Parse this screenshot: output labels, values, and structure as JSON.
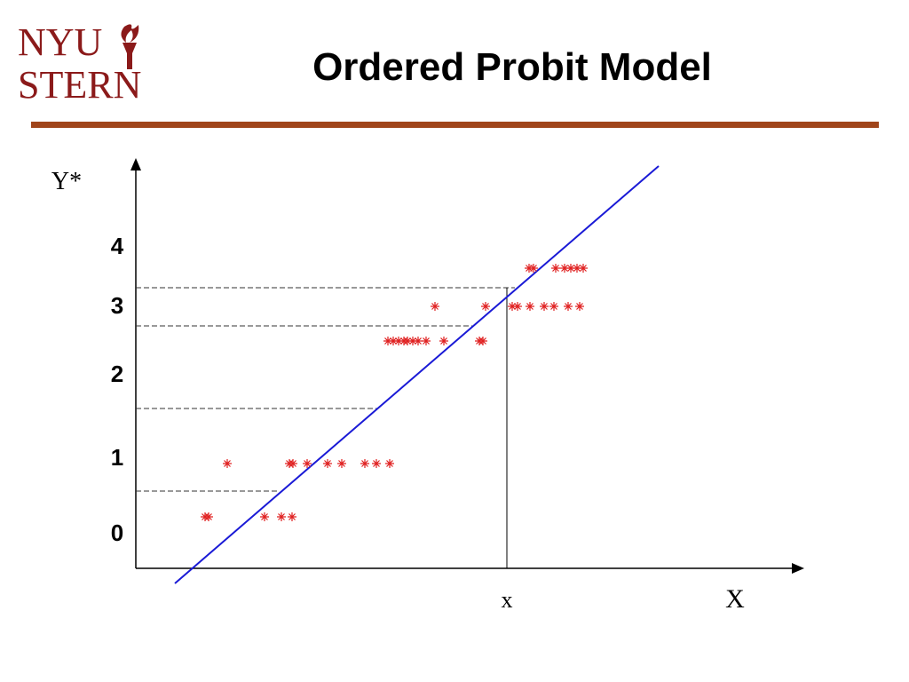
{
  "header": {
    "logo_line1": "NYU",
    "logo_line2": "STERN",
    "title": "Ordered Probit Model"
  },
  "diagram": {
    "y_axis_label": "Y*",
    "levels": [
      "4",
      "3",
      "2",
      "1",
      "0"
    ],
    "x_marker": "x",
    "x_axis_label": "X"
  }
}
